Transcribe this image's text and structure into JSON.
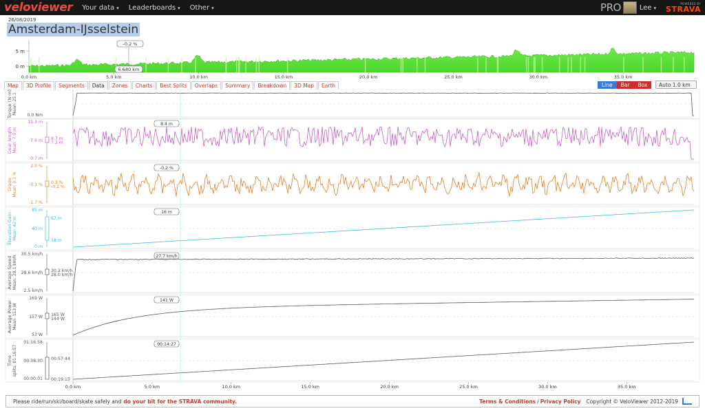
{
  "nav": {
    "logo": "veloviewer",
    "items": [
      {
        "label": "Your data"
      },
      {
        "label": "Leaderboards"
      },
      {
        "label": "Other"
      }
    ],
    "caret": "▾",
    "pro": "PRO",
    "user": "Lee",
    "strava_small": "POWERED BY",
    "strava_big": "STRAVA"
  },
  "activity": {
    "date": "26/08/2019",
    "title": "Amsterdam-IJsselstein"
  },
  "profile": {
    "ytick_5": "5 m",
    "ytick_0": "0 m",
    "hover_value": "-0.2 %",
    "hover_distance": "6.680 km",
    "xticks": [
      "0.0 km",
      "5.0 km",
      "10.0 km",
      "15.0 km",
      "20.0 km",
      "25.0 km",
      "30.0 km",
      "35.0 km"
    ]
  },
  "tabs": [
    "Map",
    "3D Profile",
    "Segments",
    "Data",
    "Zones",
    "Charts",
    "Best Splits",
    "Overlaps",
    "Summary",
    "Breakdown",
    "3D Map",
    "Earth"
  ],
  "active_tab": "Data",
  "chart_mode": {
    "line": "Line",
    "bar": "Bar",
    "box": "Box",
    "auto": "Auto 1.0 km"
  },
  "chart_data": [
    {
      "type": "line",
      "ylabel": "Torque (N·m)",
      "mean": "Mean: 25.1",
      "ymin_label": "0.0 Nm",
      "color": "#555555"
    },
    {
      "type": "line",
      "ylabel": "Gear length",
      "mean": "Mean: 7.9 m",
      "ytop": "11.3 m",
      "ymid": "7.9 m",
      "ybot": "0.7 m",
      "box_hi": "8.7 m",
      "box_lo": "7.2 m",
      "hover": "8.4 m",
      "color": "#c85ec7"
    },
    {
      "type": "line",
      "ylabel": "Grade",
      "mean": "Mean: 0.1 %",
      "ytop": "2.0 %",
      "ymid": "0.1 %",
      "ybot": "-1.7 %",
      "box_hi": "0.3 %",
      "box_lo": "-0.2 %",
      "hover": "-0.2 %",
      "color": "#e67e22"
    },
    {
      "type": "line",
      "ylabel": "Elevation Gain",
      "mean": "Mean: 42 m",
      "ytop": "85 m",
      "ymid": "40 m",
      "ybot": "0 m",
      "box_hi": "67 m",
      "box_lo": "18 m",
      "hover": "16 m",
      "color": "#3fb8d6"
    },
    {
      "type": "line",
      "ylabel": "Average Speed",
      "mean": "Mean: 29.1 km/h",
      "ytop": "30.5 km/h",
      "ymid": "29.6 km/h",
      "ybot": "2.5 km/h",
      "box_hi": "30.2 km/h",
      "box_lo": "28.0 km/h",
      "hover": "27.7 km/h",
      "color": "#555555"
    },
    {
      "type": "line",
      "ylabel": "Average Power",
      "mean": "Mean: 153 W",
      "ytop": "169 W",
      "ymid": "157 W",
      "ybot": "53 W",
      "box_hi": "165 W",
      "box_lo": "144 W",
      "hover": "141 W",
      "color": "#555555"
    },
    {
      "type": "line",
      "ylabel": "Time",
      "mean": "splits: 01:16:57",
      "ytop": "01:16:58",
      "ymid": "00:38:30",
      "ybot": "00:00:01",
      "box_hi": "00:57:44",
      "box_lo": "00:19:15",
      "hover": "00:14:27",
      "color": "#555555"
    }
  ],
  "main_xticks": [
    "0.0 km",
    "5.0 km",
    "10.0 km",
    "15.0 km",
    "20.0 km",
    "25.0 km",
    "30.0 km",
    "35.0 km"
  ],
  "footer": {
    "text": "Please ride/run/ski/board/skate safely and",
    "link": "do your bit for the STRAVA community.",
    "terms": "Terms & Conditions",
    "sep": "/",
    "privacy": "Privacy Policy",
    "copyright": "Copyright © VeloViewer 2012-2019"
  },
  "colors": {
    "accent_red": "#c0392b",
    "nav_bg": "#161616",
    "profile_green": "#5ee83f",
    "strava_orange": "#fc4c02"
  }
}
